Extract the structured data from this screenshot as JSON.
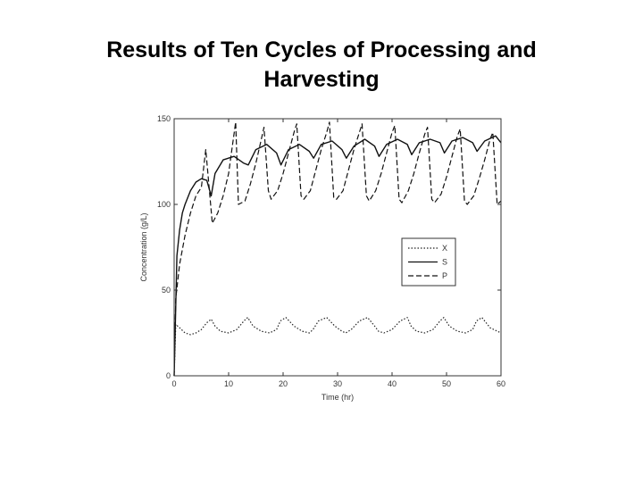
{
  "slide": {
    "title_line1": "Results of Ten Cycles of Processing and",
    "title_line2": "Harvesting"
  },
  "chart_data": {
    "type": "line",
    "xlabel": "Time (hr)",
    "ylabel": "Concentration (g/L)",
    "xlim": [
      0,
      60
    ],
    "ylim": [
      0,
      150
    ],
    "xticks": [
      0,
      10,
      20,
      30,
      40,
      50,
      60
    ],
    "yticks": [
      0,
      50,
      100,
      150
    ],
    "grid": false,
    "legend_position": "right",
    "series": [
      {
        "name": "X",
        "style": "dotted",
        "color": "#222222",
        "x": [
          0,
          0.3,
          1,
          2,
          3,
          4,
          5,
          6,
          6.8,
          7.5,
          8.5,
          10,
          11.5,
          12.8,
          13.5,
          14.5,
          16,
          17.5,
          18.8,
          19.5,
          20.5,
          22,
          23.5,
          24.8,
          25.5,
          26.5,
          28,
          29.5,
          30.8,
          31.5,
          32.5,
          34,
          35.5,
          36.8,
          37.5,
          38.5,
          40,
          41.5,
          42.8,
          43.5,
          44.5,
          46,
          47.5,
          48.8,
          49.5,
          50.5,
          52,
          53.5,
          54.8,
          55.5,
          56.5,
          58,
          60
        ],
        "y": [
          0,
          30,
          28,
          25,
          24,
          25,
          27,
          31,
          33,
          29,
          26,
          25,
          27,
          32,
          34,
          29,
          26,
          25,
          27,
          32,
          34,
          29,
          26,
          25,
          27,
          32,
          34,
          29,
          26,
          25,
          27,
          32,
          34,
          29,
          26,
          25,
          27,
          32,
          34,
          29,
          26,
          25,
          27,
          32,
          34,
          29,
          26,
          25,
          27,
          32,
          34,
          28,
          25
        ]
      },
      {
        "name": "S",
        "style": "solid",
        "color": "#111111",
        "x": [
          0,
          0.5,
          1,
          1.5,
          2,
          3,
          4,
          5,
          6,
          6.8,
          7.5,
          9,
          11,
          12.8,
          13.6,
          15,
          17,
          18.8,
          19.6,
          21,
          23,
          24.8,
          25.6,
          27,
          29,
          30.8,
          31.6,
          33,
          35,
          36.8,
          37.6,
          39,
          41,
          42.8,
          43.6,
          45,
          47,
          48.8,
          49.6,
          51,
          53,
          54.8,
          55.6,
          57,
          59,
          60
        ],
        "y": [
          0,
          70,
          85,
          95,
          100,
          108,
          113,
          115,
          114,
          105,
          118,
          126,
          128,
          124,
          123,
          132,
          135,
          130,
          123,
          132,
          135,
          131,
          127,
          135,
          137,
          132,
          127,
          134,
          138,
          134,
          128,
          135,
          138,
          135,
          129,
          136,
          138,
          136,
          130,
          137,
          139,
          136,
          131,
          137,
          140,
          136
        ]
      },
      {
        "name": "P",
        "style": "dashed",
        "color": "#111111",
        "x": [
          0,
          0.3,
          1,
          2,
          3,
          4,
          5,
          5.8,
          6.2,
          7,
          8,
          9,
          10,
          10.5,
          11.3,
          11.8,
          13,
          14,
          15,
          16,
          16.5,
          17.3,
          17.8,
          19,
          20,
          21,
          22,
          22.5,
          23.3,
          23.8,
          25,
          26,
          27,
          28,
          28.5,
          29.3,
          29.8,
          31,
          32,
          33,
          34,
          34.5,
          35.3,
          35.8,
          37,
          38,
          39,
          40,
          40.5,
          41.3,
          41.8,
          43,
          44,
          45,
          46,
          46.5,
          47.3,
          47.8,
          49,
          50,
          51,
          52,
          52.5,
          53.3,
          53.8,
          55,
          56,
          57,
          58,
          58.5,
          59.3,
          60
        ],
        "y": [
          0,
          45,
          65,
          82,
          95,
          105,
          110,
          132,
          118,
          89,
          95,
          105,
          118,
          130,
          148,
          100,
          102,
          112,
          124,
          138,
          145,
          108,
          103,
          108,
          118,
          130,
          142,
          147,
          105,
          103,
          108,
          120,
          132,
          142,
          148,
          104,
          103,
          108,
          120,
          132,
          142,
          147,
          105,
          102,
          108,
          118,
          130,
          142,
          146,
          103,
          101,
          108,
          118,
          130,
          141,
          145,
          103,
          101,
          106,
          116,
          128,
          140,
          144,
          102,
          100,
          105,
          115,
          126,
          138,
          142,
          100,
          102
        ]
      }
    ]
  }
}
